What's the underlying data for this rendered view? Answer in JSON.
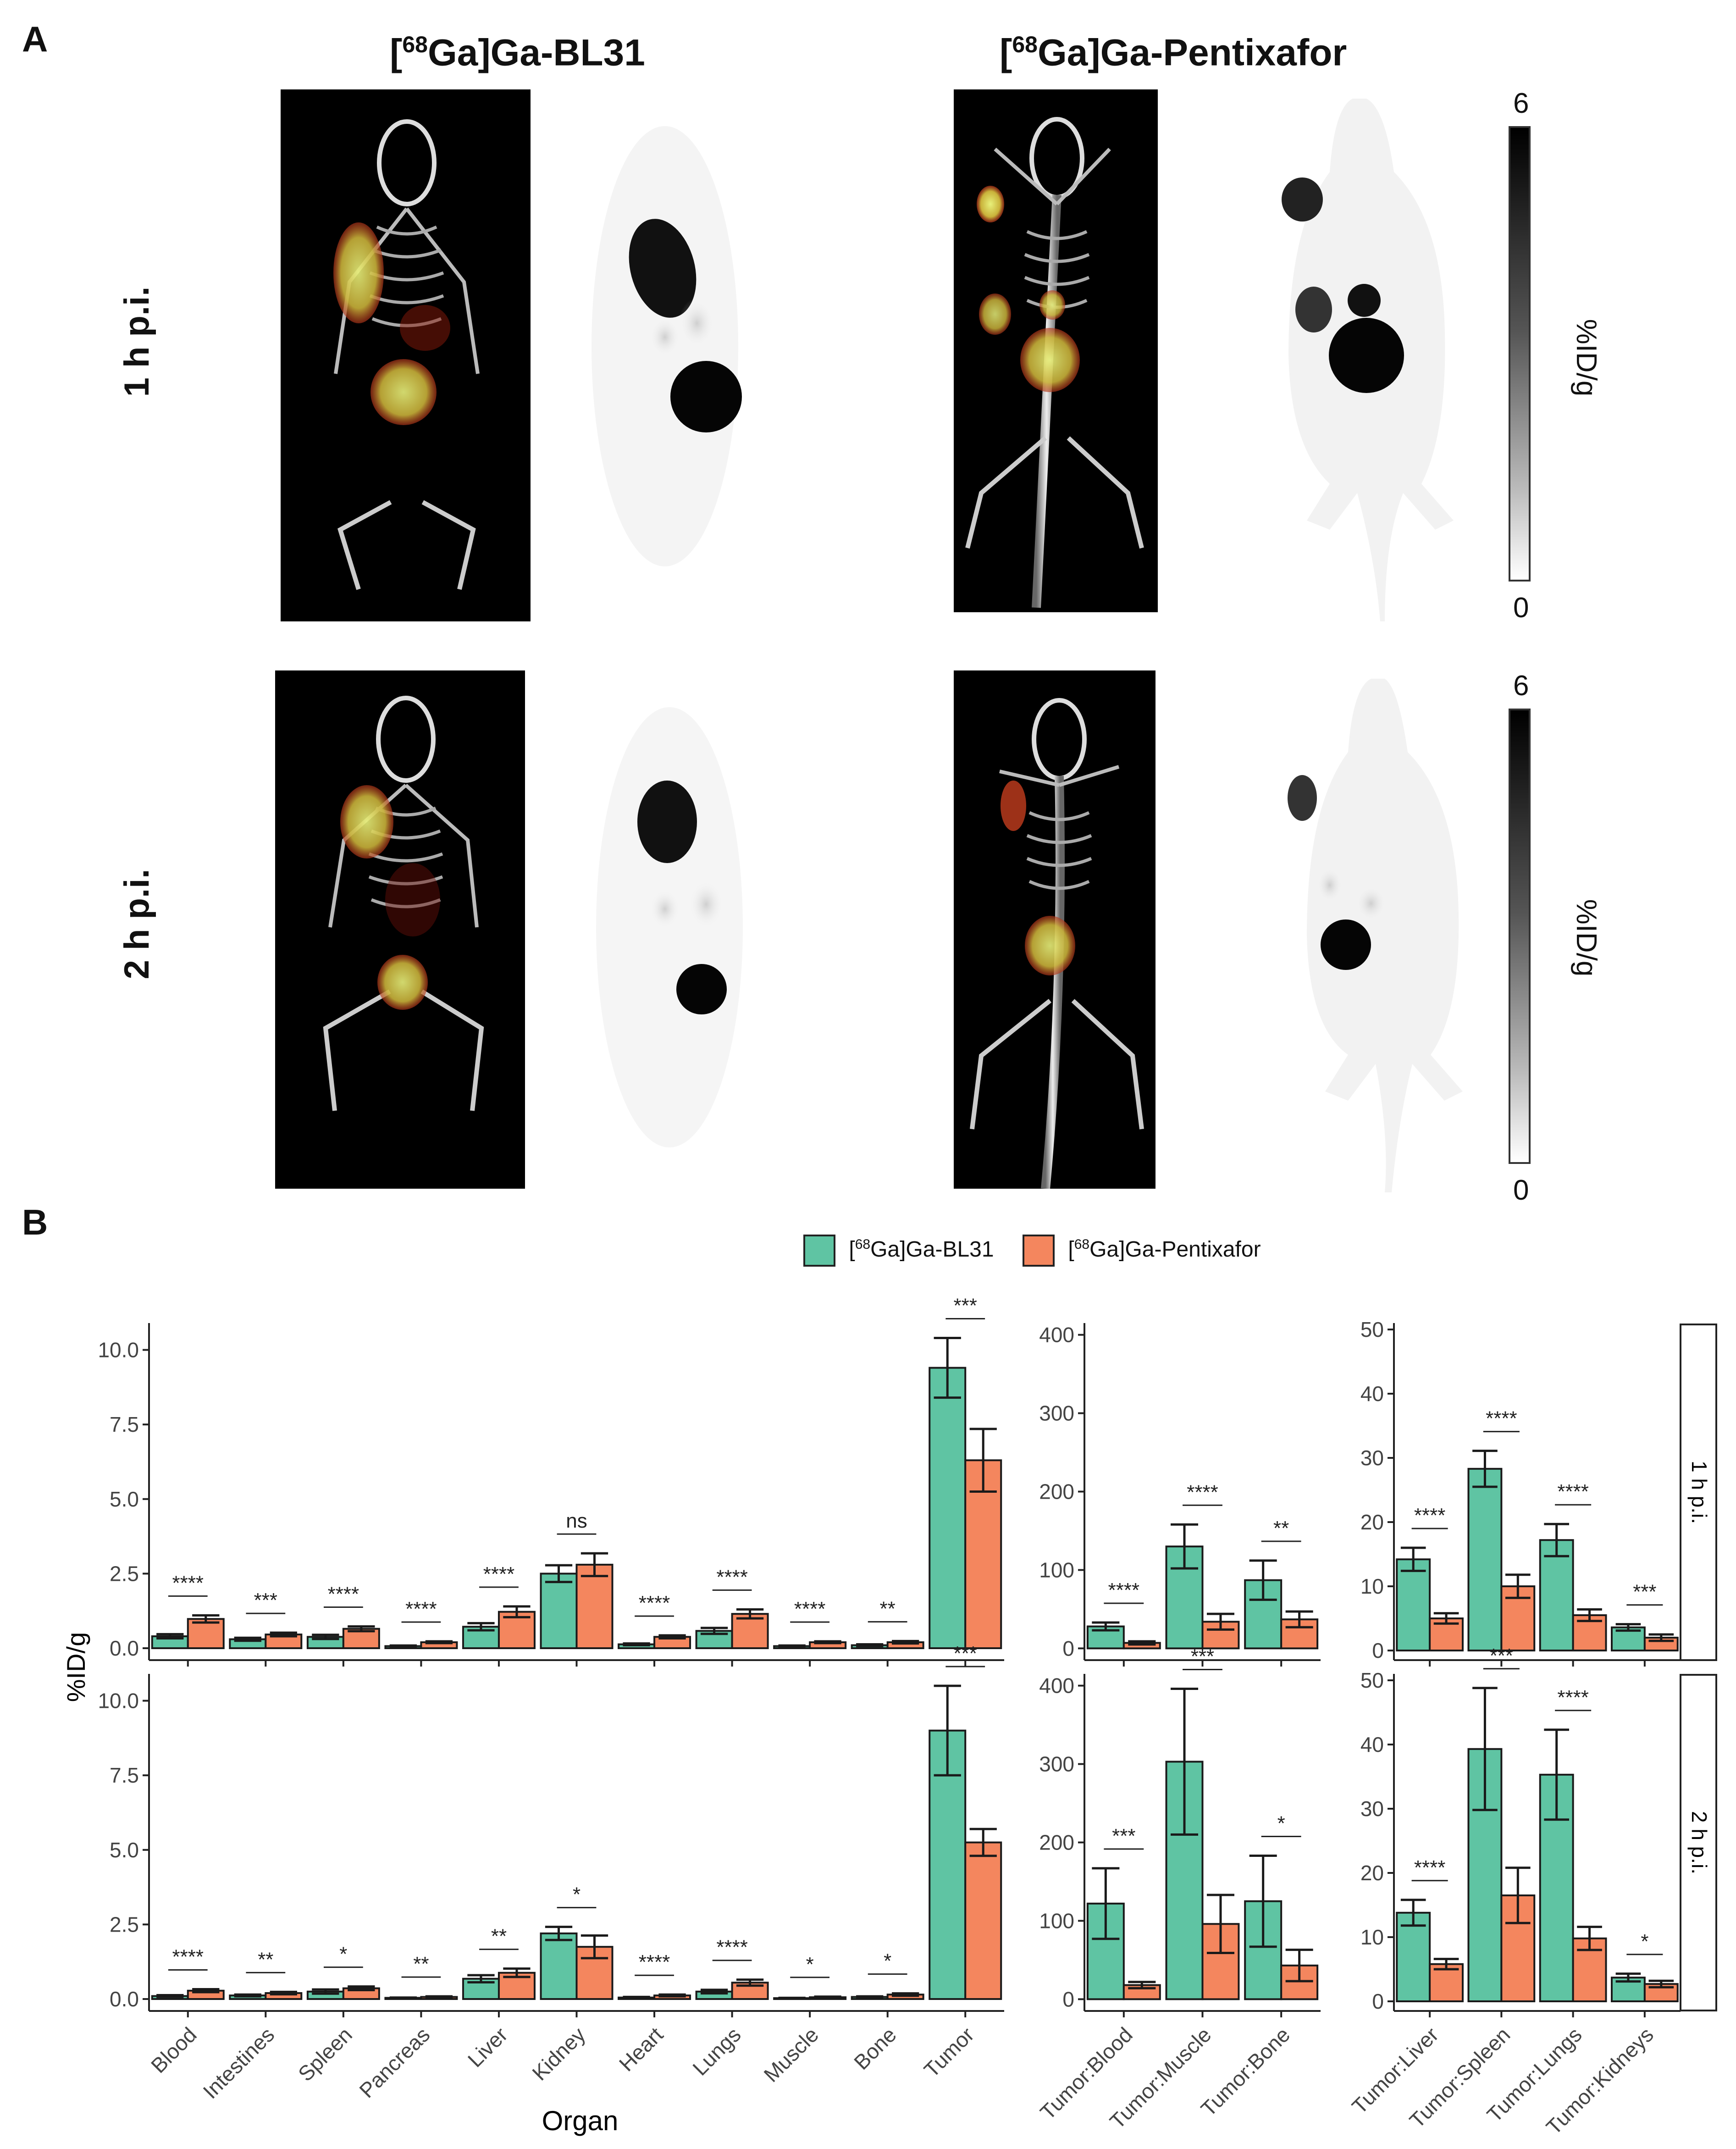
{
  "panelA": {
    "letter": "A",
    "tracer_bl31_prefix": "[",
    "tracer_bl31_sup": "68",
    "tracer_bl31_rest": "Ga]Ga-BL31",
    "tracer_pentixafor_prefix": "[",
    "tracer_pentixafor_sup": "68",
    "tracer_pentixafor_rest": "Ga]Ga-Pentixafor",
    "row1_label": "1 h p.i.",
    "row2_label": "2 h p.i.",
    "colorbar": {
      "max_label": "6",
      "min_label": "0",
      "label": "%ID/g",
      "range": [
        0,
        6
      ]
    }
  },
  "panelB": {
    "letter": "B",
    "legend": [
      {
        "prefix": "[",
        "sup": "68",
        "rest": "Ga]Ga-BL31",
        "color": "#5fc4a3"
      },
      {
        "prefix": "[",
        "sup": "68",
        "rest": "Ga]Ga-Pentixafor",
        "color": "#f4865e"
      }
    ],
    "ylabel": "%ID/g",
    "xlabel": "Organ",
    "facet_labels": [
      "1 h p.i.",
      "2 h p.i."
    ]
  },
  "chart_data": [
    {
      "type": "bar",
      "id": "organs-1h",
      "categories": [
        "Blood",
        "Intestines",
        "Spleen",
        "Pancreas",
        "Liver",
        "Kidney",
        "Heart",
        "Lungs",
        "Muscle",
        "Bone",
        "Tumor"
      ],
      "ylim": [
        -0.4,
        10.9
      ],
      "yticks": [
        "0.0",
        "2.5",
        "5.0",
        "7.5",
        "10.0"
      ],
      "series": [
        {
          "name": "[68Ga]Ga-BL31",
          "values": [
            0.4,
            0.3,
            0.38,
            0.07,
            0.72,
            2.5,
            0.13,
            0.58,
            0.07,
            0.1,
            9.4
          ],
          "errors": [
            0.07,
            0.05,
            0.07,
            0.02,
            0.12,
            0.28,
            0.03,
            0.1,
            0.02,
            0.03,
            1.0
          ]
        },
        {
          "name": "[68Ga]Ga-Pentixafor",
          "values": [
            0.98,
            0.46,
            0.65,
            0.2,
            1.22,
            2.8,
            0.38,
            1.15,
            0.2,
            0.2,
            6.3
          ],
          "errors": [
            0.12,
            0.06,
            0.08,
            0.03,
            0.18,
            0.38,
            0.05,
            0.15,
            0.03,
            0.04,
            1.05
          ]
        }
      ],
      "significance": [
        "****",
        "***",
        "****",
        "****",
        "****",
        "ns",
        "****",
        "****",
        "****",
        "**",
        "***"
      ]
    },
    {
      "type": "bar",
      "id": "organs-2h",
      "categories": [
        "Blood",
        "Intestines",
        "Spleen",
        "Pancreas",
        "Liver",
        "Kidney",
        "Heart",
        "Lungs",
        "Muscle",
        "Bone",
        "Tumor"
      ],
      "ylim": [
        -0.4,
        10.9
      ],
      "yticks": [
        "0.0",
        "2.5",
        "5.0",
        "7.5",
        "10.0"
      ],
      "series": [
        {
          "name": "[68Ga]Ga-BL31",
          "values": [
            0.1,
            0.12,
            0.25,
            0.04,
            0.68,
            2.2,
            0.05,
            0.25,
            0.03,
            0.07,
            9.0
          ],
          "errors": [
            0.03,
            0.03,
            0.07,
            0.01,
            0.12,
            0.22,
            0.02,
            0.06,
            0.01,
            0.02,
            1.5
          ]
        },
        {
          "name": "[68Ga]Ga-Pentixafor",
          "values": [
            0.28,
            0.2,
            0.36,
            0.07,
            0.88,
            1.75,
            0.12,
            0.55,
            0.06,
            0.15,
            5.25
          ],
          "errors": [
            0.05,
            0.04,
            0.06,
            0.02,
            0.14,
            0.38,
            0.03,
            0.1,
            0.02,
            0.04,
            0.45
          ]
        }
      ],
      "significance": [
        "****",
        "**",
        "*",
        "**",
        "**",
        "*",
        "****",
        "****",
        "*",
        "*",
        "***"
      ]
    },
    {
      "type": "bar",
      "id": "ratios-a-1h",
      "categories": [
        "Tumor:Blood",
        "Tumor:Muscle",
        "Tumor:Bone"
      ],
      "ylim": [
        -15,
        415
      ],
      "yticks": [
        "0",
        "100",
        "200",
        "300",
        "400"
      ],
      "series": [
        {
          "name": "[68Ga]Ga-BL31",
          "values": [
            28,
            130,
            87
          ],
          "errors": [
            5,
            28,
            25
          ]
        },
        {
          "name": "[68Ga]Ga-Pentixafor",
          "values": [
            7,
            34,
            37
          ],
          "errors": [
            2,
            10,
            10
          ]
        }
      ],
      "significance": [
        "****",
        "****",
        "**"
      ]
    },
    {
      "type": "bar",
      "id": "ratios-a-2h",
      "categories": [
        "Tumor:Blood",
        "Tumor:Muscle",
        "Tumor:Bone"
      ],
      "ylim": [
        -15,
        415
      ],
      "yticks": [
        "0",
        "100",
        "200",
        "300",
        "400"
      ],
      "series": [
        {
          "name": "[68Ga]Ga-BL31",
          "values": [
            122,
            303,
            125
          ],
          "errors": [
            45,
            93,
            58
          ]
        },
        {
          "name": "[68Ga]Ga-Pentixafor",
          "values": [
            18,
            96,
            43
          ],
          "errors": [
            4,
            37,
            20
          ]
        }
      ],
      "significance": [
        "***",
        "***",
        "*"
      ]
    },
    {
      "type": "bar",
      "id": "ratios-b-1h",
      "categories": [
        "Tumor:Liver",
        "Tumor:Spleen",
        "Tumor:Lungs",
        "Tumor:Kidneys"
      ],
      "ylim": [
        -1.5,
        51
      ],
      "yticks": [
        "0",
        "10",
        "20",
        "30",
        "40",
        "50"
      ],
      "series": [
        {
          "name": "[68Ga]Ga-BL31",
          "values": [
            14.2,
            28.3,
            17.2,
            3.6
          ],
          "errors": [
            1.8,
            2.8,
            2.5,
            0.5
          ]
        },
        {
          "name": "[68Ga]Ga-Pentixafor",
          "values": [
            5.0,
            10.0,
            5.5,
            2.0
          ],
          "errors": [
            0.8,
            1.8,
            0.9,
            0.5
          ]
        }
      ],
      "significance": [
        "****",
        "****",
        "****",
        "***"
      ]
    },
    {
      "type": "bar",
      "id": "ratios-b-2h",
      "categories": [
        "Tumor:Liver",
        "Tumor:Spleen",
        "Tumor:Lungs",
        "Tumor:Kidneys"
      ],
      "ylim": [
        -1.5,
        51
      ],
      "yticks": [
        "0",
        "10",
        "20",
        "30",
        "40",
        "50"
      ],
      "series": [
        {
          "name": "[68Ga]Ga-BL31",
          "values": [
            13.8,
            39.3,
            35.3,
            3.7
          ],
          "errors": [
            2.0,
            9.5,
            7.0,
            0.6
          ]
        },
        {
          "name": "[68Ga]Ga-Pentixafor",
          "values": [
            5.8,
            16.5,
            9.8,
            2.7
          ],
          "errors": [
            0.8,
            4.3,
            1.8,
            0.5
          ]
        }
      ],
      "significance": [
        "****",
        "***",
        "****",
        "*"
      ]
    }
  ]
}
